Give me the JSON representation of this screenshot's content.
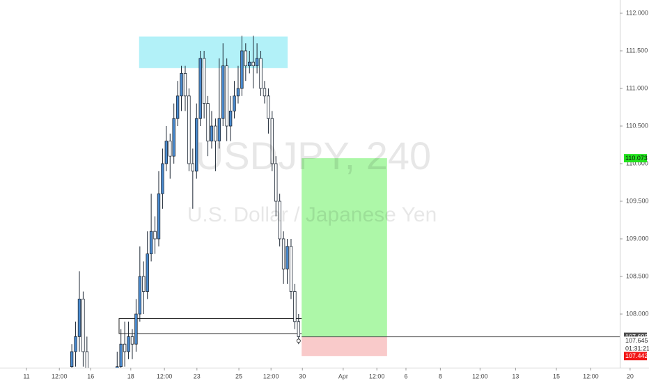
{
  "chart_data": {
    "type": "candlestick",
    "watermark_title": "USDJPY, 240",
    "watermark_subtitle": "U.S. Dollar / Japanese Yen",
    "up_color": "#4a8bd0",
    "down_color": "#ffffff",
    "outline_color": "#1c2633",
    "x": [
      19,
      20,
      21,
      22,
      23,
      31,
      32,
      33,
      34,
      35,
      36,
      37,
      38,
      39,
      40,
      41,
      42,
      43,
      44,
      45,
      46,
      47,
      48,
      49,
      50,
      51,
      52,
      53,
      54,
      55,
      56,
      57,
      58,
      59,
      60,
      61,
      62,
      63,
      64,
      65,
      66,
      67,
      68,
      69,
      70,
      71,
      72,
      73,
      74,
      75,
      76,
      77,
      78,
      79
    ],
    "open": [
      107.3,
      107.5,
      107.7,
      108.2,
      107.5,
      107.1,
      107.3,
      107.6,
      107.5,
      107.7,
      107.6,
      108.0,
      108.5,
      108.3,
      108.8,
      109.1,
      109.0,
      109.6,
      110.0,
      110.3,
      110.1,
      110.6,
      110.9,
      111.2,
      110.9,
      110.0,
      109.9,
      110.6,
      111.4,
      110.8,
      110.3,
      110.5,
      110.3,
      110.6,
      111.3,
      110.5,
      110.7,
      110.9,
      111.0,
      111.5,
      111.3,
      111.35,
      111.3,
      111.4,
      111.0,
      110.9,
      110.6,
      110.0,
      109.5,
      109.0,
      108.6,
      108.9,
      108.3,
      107.9
    ],
    "high": [
      107.6,
      107.9,
      108.57,
      108.3,
      107.7,
      107.5,
      107.8,
      107.9,
      107.9,
      107.8,
      108.2,
      108.9,
      108.7,
      109.1,
      109.6,
      109.3,
      109.9,
      110.2,
      110.5,
      110.4,
      110.8,
      111.1,
      111.3,
      111.3,
      111.0,
      110.2,
      110.8,
      111.5,
      111.5,
      110.9,
      110.7,
      110.6,
      111.4,
      111.6,
      111.4,
      110.9,
      111.1,
      111.3,
      111.7,
      111.6,
      111.5,
      111.7,
      111.6,
      111.5,
      111.1,
      111.0,
      110.7,
      110.1,
      109.6,
      109.1,
      109.0,
      109.0,
      108.4,
      108.0
    ],
    "low": [
      107.0,
      107.3,
      107.5,
      107.3,
      107.1,
      106.9,
      107.2,
      107.3,
      107.4,
      107.4,
      107.5,
      107.9,
      108.0,
      108.2,
      108.7,
      108.8,
      108.9,
      109.4,
      109.9,
      109.8,
      110.0,
      110.5,
      110.7,
      110.7,
      109.9,
      109.4,
      109.8,
      110.5,
      110.6,
      110.1,
      110.2,
      109.9,
      110.2,
      110.5,
      110.3,
      110.3,
      110.6,
      110.8,
      110.9,
      111.1,
      111.2,
      111.0,
      111.2,
      110.9,
      110.8,
      110.4,
      109.9,
      109.3,
      108.9,
      108.4,
      108.4,
      108.2,
      107.8,
      107.6
    ],
    "close": [
      107.5,
      107.7,
      108.2,
      107.5,
      107.2,
      107.3,
      107.6,
      107.5,
      107.7,
      107.6,
      108.0,
      108.5,
      108.3,
      108.8,
      109.1,
      109.0,
      109.6,
      110.0,
      110.3,
      110.1,
      110.6,
      110.9,
      111.2,
      110.9,
      110.0,
      109.9,
      110.6,
      111.4,
      110.8,
      110.3,
      110.5,
      110.3,
      110.6,
      111.3,
      110.5,
      110.7,
      110.9,
      111.0,
      111.5,
      111.3,
      111.35,
      111.3,
      111.4,
      111.0,
      110.9,
      110.6,
      110.0,
      109.5,
      109.0,
      108.6,
      108.9,
      108.3,
      107.9,
      107.7
    ],
    "xlim": [
      0,
      171.7
    ],
    "ylim": [
      107.287,
      112.176
    ],
    "yticks": [
      {
        "value": 112.0,
        "label": "112.000"
      },
      {
        "value": 111.5,
        "label": "111.500"
      },
      {
        "value": 111.0,
        "label": "111.000"
      },
      {
        "value": 110.5,
        "label": "110.500"
      },
      {
        "value": 110.0,
        "label": "110.000"
      },
      {
        "value": 109.5,
        "label": "109.500"
      },
      {
        "value": 109.0,
        "label": "109.000"
      },
      {
        "value": 108.5,
        "label": "108.500"
      },
      {
        "value": 108.0,
        "label": "108.000"
      }
    ],
    "xticks": [
      {
        "value": 7,
        "label": "11"
      },
      {
        "value": 15.7,
        "label": "12:00"
      },
      {
        "value": 24,
        "label": "16"
      },
      {
        "value": 34.6,
        "label": "18"
      },
      {
        "value": 43.5,
        "label": "12:00"
      },
      {
        "value": 52.1,
        "label": "23"
      },
      {
        "value": 63.2,
        "label": "25"
      },
      {
        "value": 71.7,
        "label": "12:00"
      },
      {
        "value": 80,
        "label": "30"
      },
      {
        "value": 90.8,
        "label": "Apr"
      },
      {
        "value": 99.7,
        "label": "12:00"
      },
      {
        "value": 107.4,
        "label": "6"
      },
      {
        "value": 116.5,
        "label": "8"
      },
      {
        "value": 127,
        "label": "12:00"
      },
      {
        "value": 136.4,
        "label": "13"
      },
      {
        "value": 147.2,
        "label": "15"
      },
      {
        "value": 156.3,
        "label": "12:00"
      },
      {
        "value": 166.7,
        "label": "20"
      }
    ],
    "zones": [
      {
        "x": [
          36.8,
          76.1
        ],
        "y": [
          111.27,
          111.69
        ],
        "color": "#b2f1f8",
        "outline": "none"
      },
      {
        "x": [
          31.5,
          93
        ],
        "y": [
          107.74,
          107.94
        ],
        "color": "none",
        "outline": "#222222"
      }
    ],
    "position": {
      "x": [
        79.8,
        102.4
      ],
      "entry": 107.698,
      "target": 110.073,
      "stop": 107.442,
      "target_color": "#adf7a8",
      "stop_color": "#f9caca"
    },
    "last_price": 107.645,
    "countdown": "01:31:21"
  }
}
